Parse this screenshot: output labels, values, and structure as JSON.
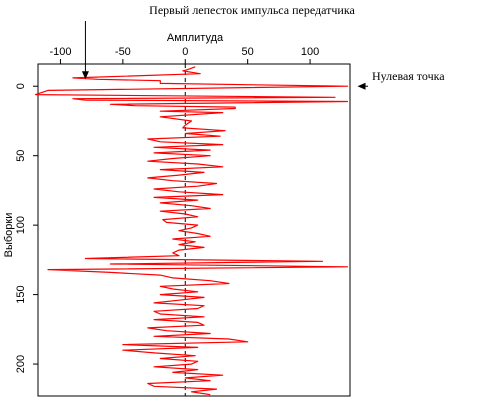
{
  "chart_data": {
    "type": "line",
    "orientation": "vertical",
    "title": "",
    "xlabel": "Амплитуда",
    "ylabel": "Выборки",
    "xlim": [
      -118,
      132
    ],
    "ylim": [
      -16,
      223
    ],
    "x_ticks": [
      "-100",
      "-50",
      "0",
      "50",
      "100"
    ],
    "y_ticks": [
      "0",
      "50",
      "100",
      "150",
      "200"
    ],
    "zero_line": "dashed",
    "grid": false,
    "series": [
      {
        "color": "#ff0000",
        "points": [
          [
            8,
            -14
          ],
          [
            2,
            -12
          ],
          [
            -2,
            -11
          ],
          [
            12,
            -9
          ],
          [
            -90,
            -6
          ],
          [
            -70,
            -5
          ],
          [
            -20,
            -4
          ],
          [
            -20,
            -2
          ],
          [
            130,
            0
          ],
          [
            -110,
            3
          ],
          [
            -120,
            6
          ],
          [
            120,
            8
          ],
          [
            -90,
            9
          ],
          [
            -80,
            10
          ],
          [
            130,
            11
          ],
          [
            -60,
            13
          ],
          [
            -40,
            14
          ],
          [
            40,
            15
          ],
          [
            40,
            16
          ],
          [
            -20,
            18
          ],
          [
            30,
            19
          ],
          [
            -20,
            22
          ],
          [
            5,
            25
          ],
          [
            0,
            28
          ],
          [
            -2,
            30
          ],
          [
            32,
            32
          ],
          [
            0,
            34
          ],
          [
            28,
            36
          ],
          [
            -30,
            38
          ],
          [
            -20,
            40
          ],
          [
            30,
            42
          ],
          [
            -25,
            44
          ],
          [
            20,
            46
          ],
          [
            -25,
            48
          ],
          [
            20,
            50
          ],
          [
            -10,
            52
          ],
          [
            -30,
            54
          ],
          [
            10,
            56
          ],
          [
            30,
            58
          ],
          [
            -20,
            60
          ],
          [
            15,
            62
          ],
          [
            -5,
            64
          ],
          [
            -30,
            66
          ],
          [
            -10,
            68
          ],
          [
            25,
            70
          ],
          [
            10,
            72
          ],
          [
            -25,
            74
          ],
          [
            -5,
            76
          ],
          [
            30,
            78
          ],
          [
            -25,
            80
          ],
          [
            10,
            82
          ],
          [
            -20,
            84
          ],
          [
            5,
            86
          ],
          [
            20,
            88
          ],
          [
            -20,
            90
          ],
          [
            0,
            92
          ],
          [
            10,
            94
          ],
          [
            -18,
            96
          ],
          [
            -15,
            98
          ],
          [
            10,
            100
          ],
          [
            5,
            102
          ],
          [
            -5,
            104
          ],
          [
            10,
            106
          ],
          [
            20,
            108
          ],
          [
            -10,
            110
          ],
          [
            8,
            112
          ],
          [
            -5,
            114
          ],
          [
            15,
            116
          ],
          [
            -5,
            118
          ],
          [
            -10,
            120
          ],
          [
            -5,
            122
          ],
          [
            -80,
            124
          ],
          [
            110,
            126
          ],
          [
            -60,
            128
          ],
          [
            130,
            130
          ],
          [
            -110,
            132
          ],
          [
            -60,
            134
          ],
          [
            -20,
            136
          ],
          [
            -10,
            138
          ],
          [
            20,
            140
          ],
          [
            35,
            142
          ],
          [
            -20,
            144
          ],
          [
            -10,
            146
          ],
          [
            10,
            148
          ],
          [
            -20,
            150
          ],
          [
            15,
            152
          ],
          [
            -5,
            154
          ],
          [
            -25,
            156
          ],
          [
            15,
            158
          ],
          [
            10,
            160
          ],
          [
            -25,
            162
          ],
          [
            -20,
            164
          ],
          [
            15,
            166
          ],
          [
            -25,
            168
          ],
          [
            10,
            170
          ],
          [
            15,
            172
          ],
          [
            -30,
            174
          ],
          [
            -15,
            176
          ],
          [
            20,
            178
          ],
          [
            -25,
            180
          ],
          [
            35,
            182
          ],
          [
            50,
            184
          ],
          [
            -50,
            186
          ],
          [
            10,
            188
          ],
          [
            -50,
            190
          ],
          [
            -25,
            192
          ],
          [
            8,
            194
          ],
          [
            -20,
            196
          ],
          [
            10,
            198
          ],
          [
            5,
            200
          ],
          [
            -25,
            202
          ],
          [
            10,
            204
          ],
          [
            -10,
            206
          ],
          [
            30,
            208
          ],
          [
            0,
            210
          ],
          [
            20,
            212
          ],
          [
            -30,
            214
          ],
          [
            -25,
            216
          ],
          [
            25,
            218
          ],
          [
            5,
            220
          ],
          [
            20,
            222
          ]
        ]
      }
    ],
    "annotations": [
      {
        "text": "Первый лепесток импульса передатчика",
        "point": [
          -80,
          -5
        ]
      },
      {
        "text": "Нулевая точка",
        "point": [
          130,
          0
        ]
      }
    ]
  }
}
